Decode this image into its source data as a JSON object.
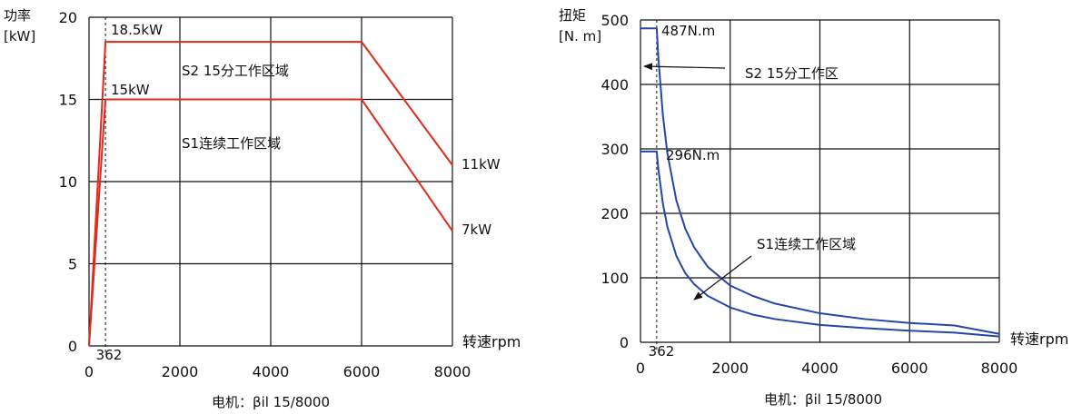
{
  "chart_data": [
    {
      "type": "line",
      "ylabel": "功率",
      "yunit": "[kW]",
      "xlabel": "转速rpm",
      "caption": "电机：βil 15/8000",
      "xlim": [
        0,
        8000
      ],
      "ylim": [
        0,
        20
      ],
      "xticks": [
        0,
        2000,
        4000,
        6000,
        8000
      ],
      "yticks": [
        0,
        5,
        10,
        15,
        20
      ],
      "marker": {
        "x": 362,
        "label": "362"
      },
      "series": [
        {
          "color": "#e02a1c",
          "x": [
            0,
            362,
            6000,
            8000
          ],
          "y": [
            0,
            18.5,
            18.5,
            11
          ]
        },
        {
          "color": "#e02a1c",
          "x": [
            0,
            362,
            6000,
            8000
          ],
          "y": [
            0,
            15,
            15,
            7
          ]
        }
      ],
      "labels": {
        "s2_peak": "18.5kW",
        "s1_peak": "15kW",
        "s2_region": "S2 15分工作区域",
        "s1_region": "S1连续工作区域",
        "s2_end": "11kW",
        "s1_end": "7kW"
      }
    },
    {
      "type": "line",
      "ylabel": "扭矩",
      "yunit": "[N. m]",
      "xlabel": "转速rpm",
      "caption": "电机：βil 15/8000",
      "xlim": [
        0,
        8000
      ],
      "ylim": [
        0,
        500
      ],
      "xticks": [
        0,
        2000,
        4000,
        6000,
        8000
      ],
      "yticks": [
        0,
        100,
        200,
        300,
        400,
        500
      ],
      "marker": {
        "x": 362,
        "label": "362"
      },
      "series": [
        {
          "color": "#2446a8",
          "x": [
            0,
            362,
            400,
            500,
            600,
            800,
            1000,
            1200,
            1500,
            2000,
            2500,
            3000,
            4000,
            5000,
            6000,
            7000,
            8000
          ],
          "y": [
            487,
            487,
            440,
            352,
            293,
            220,
            176,
            147,
            117,
            88,
            72,
            60,
            45,
            36,
            30,
            26,
            13
          ]
        },
        {
          "color": "#2446a8",
          "x": [
            0,
            362,
            400,
            500,
            600,
            800,
            1000,
            1200,
            1500,
            2000,
            2500,
            3000,
            4000,
            5000,
            6000,
            7000,
            8000
          ],
          "y": [
            296,
            296,
            268,
            215,
            179,
            134,
            107,
            90,
            72,
            54,
            43,
            36,
            27,
            22,
            18,
            15,
            9
          ]
        }
      ],
      "labels": {
        "s2_peak": "487N.m",
        "s1_peak": "296N.m",
        "s2_region": "S2 15分工作区",
        "s1_region": "S1连续工作区域"
      }
    }
  ]
}
